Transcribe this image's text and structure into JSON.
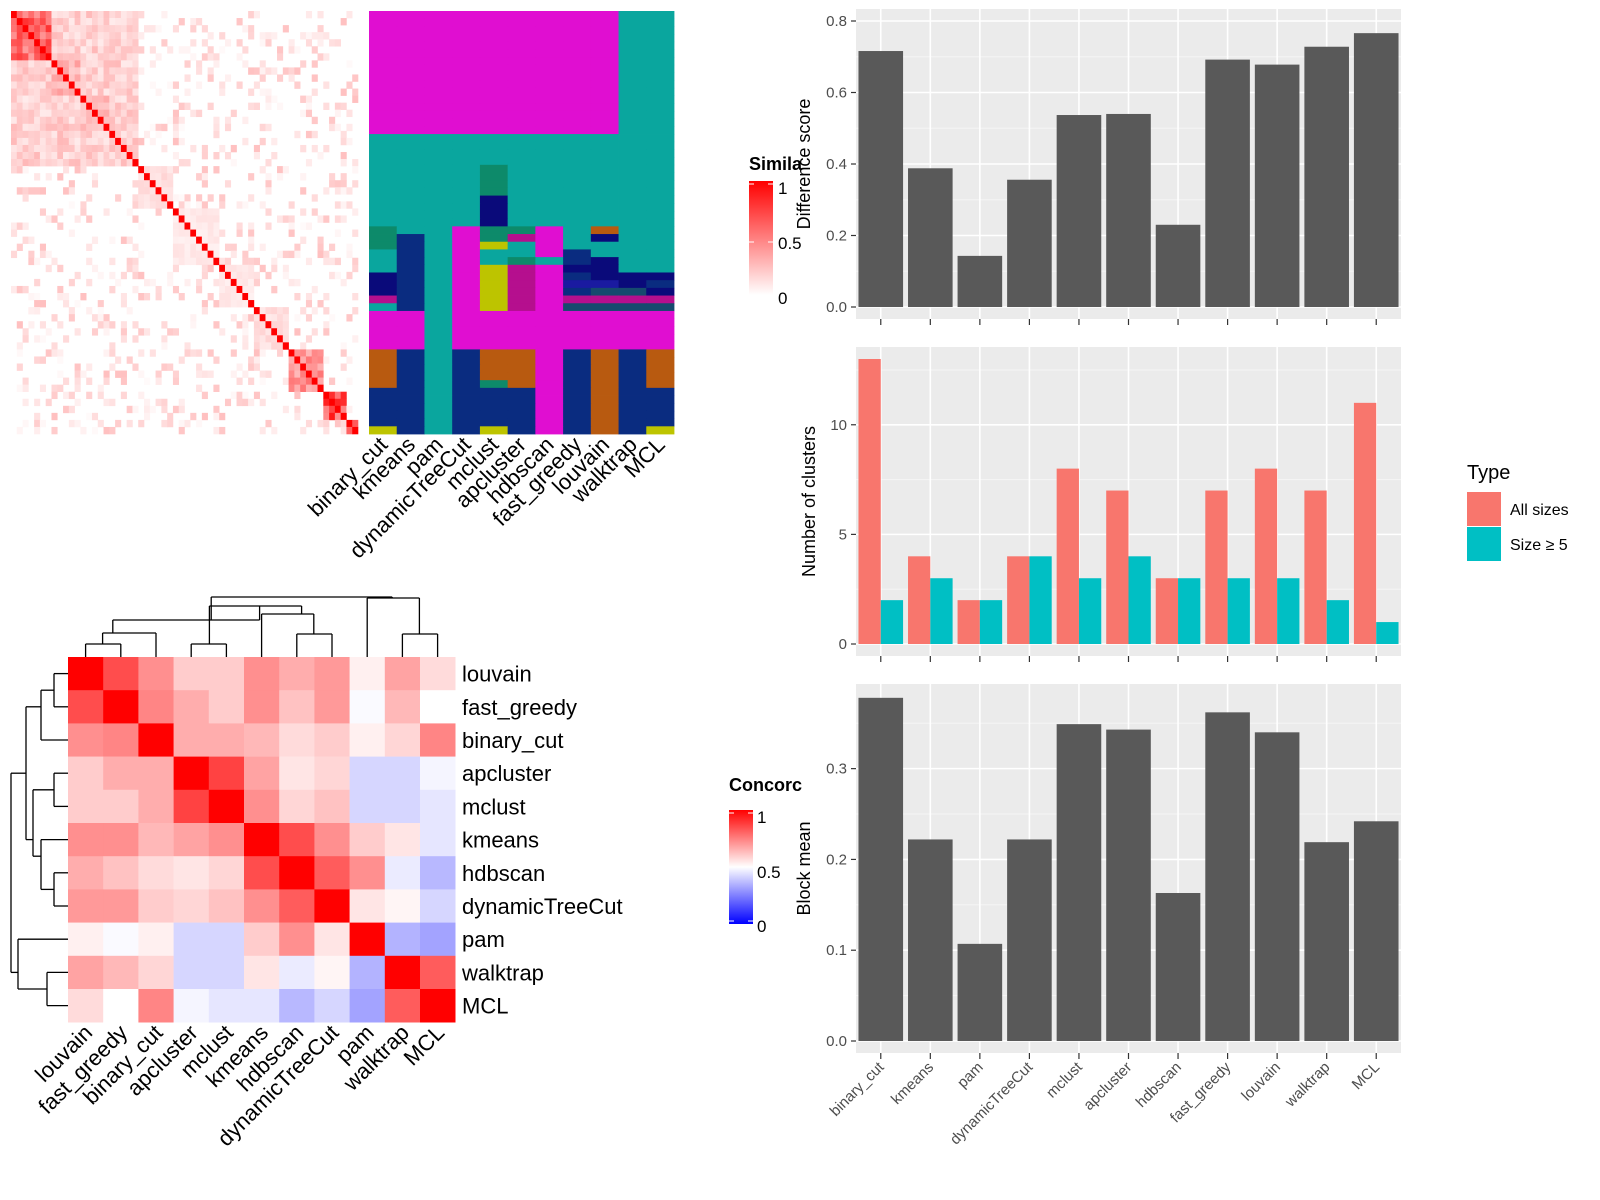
{
  "methods": [
    "binary_cut",
    "kmeans",
    "pam",
    "dynamicTreeCut",
    "mclust",
    "apcluster",
    "hdbscan",
    "fast_greedy",
    "louvain",
    "walktrap",
    "MCL"
  ],
  "similarity_legend": {
    "title": "Simila",
    "ticks": [
      "1",
      "0.5",
      "0"
    ],
    "colors": [
      "#ffffff",
      "#ff0000"
    ]
  },
  "concordance_legend": {
    "title": "Concorc",
    "ticks": [
      "1",
      "0.5",
      "0"
    ],
    "colors": [
      "#0000ff",
      "#ffffff",
      "#ff0000"
    ]
  },
  "colors": {
    "panel_bg": "#ebebeb",
    "bar_fill": "#595959",
    "all_sizes": "#f8766d",
    "size_ge5": "#00bfc4"
  },
  "chart_data": [
    {
      "type": "heatmap",
      "panel": "similarity",
      "title": "Simila",
      "n": 60,
      "blocks": [
        [
          0,
          7
        ],
        [
          7,
          12
        ],
        [
          12,
          17
        ],
        [
          17,
          22
        ],
        [
          22,
          28
        ],
        [
          28,
          36
        ],
        [
          36,
          42
        ],
        [
          42,
          48
        ],
        [
          48,
          54
        ],
        [
          54,
          58
        ],
        [
          58,
          60
        ]
      ],
      "block_strength": [
        0.7,
        0.35,
        0.3,
        0.15,
        0.15,
        0.1,
        0.1,
        0.15,
        0.5,
        0.8,
        0.9
      ],
      "range": [
        0,
        1
      ]
    },
    {
      "type": "heatmap",
      "panel": "cluster-assignments",
      "columns": [
        "binary_cut",
        "kmeans",
        "pam",
        "dynamicTreeCut",
        "mclust",
        "apcluster",
        "hdbscan",
        "fast_greedy",
        "louvain",
        "walktrap",
        "MCL"
      ],
      "palette": [
        "#e00ed1",
        "#0aa69e",
        "#0d8a6a",
        "#0a0a7a",
        "#0a2c80",
        "#bdc400",
        "#b50f8e",
        "#b85a10",
        "#1a1aa0",
        "#164a6e"
      ],
      "rows": [
        [
          0,
          0,
          0,
          0,
          0,
          0,
          0,
          0,
          0,
          1,
          1
        ],
        [
          0,
          0,
          0,
          0,
          0,
          0,
          0,
          0,
          0,
          1,
          1
        ],
        [
          0,
          0,
          0,
          0,
          0,
          0,
          0,
          0,
          0,
          1,
          1
        ],
        [
          0,
          0,
          0,
          0,
          0,
          0,
          0,
          0,
          0,
          1,
          1
        ],
        [
          0,
          0,
          0,
          0,
          0,
          0,
          0,
          0,
          0,
          1,
          1
        ],
        [
          0,
          0,
          0,
          0,
          0,
          0,
          0,
          0,
          0,
          1,
          1
        ],
        [
          0,
          0,
          0,
          0,
          0,
          0,
          0,
          0,
          0,
          1,
          1
        ],
        [
          0,
          0,
          0,
          0,
          0,
          0,
          0,
          0,
          0,
          1,
          1
        ],
        [
          0,
          0,
          0,
          0,
          0,
          0,
          0,
          0,
          0,
          1,
          1
        ],
        [
          0,
          0,
          0,
          0,
          0,
          0,
          0,
          0,
          0,
          1,
          1
        ],
        [
          0,
          0,
          0,
          0,
          0,
          0,
          0,
          0,
          0,
          1,
          1
        ],
        [
          0,
          0,
          0,
          0,
          0,
          0,
          0,
          0,
          0,
          1,
          1
        ],
        [
          0,
          0,
          0,
          0,
          0,
          0,
          0,
          0,
          0,
          1,
          1
        ],
        [
          0,
          0,
          0,
          0,
          0,
          0,
          0,
          0,
          0,
          1,
          1
        ],
        [
          0,
          0,
          0,
          0,
          0,
          0,
          0,
          0,
          0,
          1,
          1
        ],
        [
          0,
          0,
          0,
          0,
          0,
          0,
          0,
          0,
          0,
          1,
          1
        ],
        [
          1,
          1,
          1,
          1,
          1,
          1,
          1,
          1,
          1,
          1,
          1
        ],
        [
          1,
          1,
          1,
          1,
          1,
          1,
          1,
          1,
          1,
          1,
          1
        ],
        [
          1,
          1,
          1,
          1,
          1,
          1,
          1,
          1,
          1,
          1,
          1
        ],
        [
          1,
          1,
          1,
          1,
          1,
          1,
          1,
          1,
          1,
          1,
          1
        ],
        [
          1,
          1,
          1,
          1,
          2,
          1,
          1,
          1,
          1,
          1,
          1
        ],
        [
          1,
          1,
          1,
          1,
          2,
          1,
          1,
          1,
          1,
          1,
          1
        ],
        [
          1,
          1,
          1,
          1,
          2,
          1,
          1,
          1,
          1,
          1,
          1
        ],
        [
          1,
          1,
          1,
          1,
          2,
          1,
          1,
          1,
          1,
          1,
          1
        ],
        [
          1,
          1,
          1,
          1,
          3,
          1,
          1,
          1,
          1,
          1,
          1
        ],
        [
          1,
          1,
          1,
          1,
          3,
          1,
          1,
          1,
          1,
          1,
          1
        ],
        [
          1,
          1,
          1,
          1,
          3,
          1,
          1,
          1,
          1,
          1,
          1
        ],
        [
          1,
          1,
          1,
          1,
          3,
          1,
          1,
          1,
          1,
          1,
          1
        ],
        [
          2,
          1,
          1,
          0,
          2,
          2,
          0,
          1,
          7,
          1,
          1
        ],
        [
          2,
          4,
          1,
          0,
          2,
          6,
          0,
          1,
          3,
          1,
          1
        ],
        [
          2,
          4,
          1,
          0,
          5,
          1,
          0,
          1,
          1,
          1,
          1
        ],
        [
          1,
          4,
          1,
          0,
          1,
          1,
          0,
          4,
          1,
          1,
          1
        ],
        [
          1,
          4,
          1,
          0,
          1,
          2,
          1,
          4,
          3,
          1,
          1
        ],
        [
          1,
          4,
          1,
          0,
          5,
          6,
          0,
          3,
          3,
          1,
          1
        ],
        [
          3,
          4,
          1,
          0,
          5,
          6,
          0,
          4,
          3,
          3,
          3
        ],
        [
          3,
          4,
          1,
          0,
          5,
          6,
          0,
          8,
          8,
          3,
          4
        ],
        [
          3,
          4,
          1,
          0,
          5,
          6,
          0,
          4,
          9,
          9,
          3
        ],
        [
          6,
          4,
          1,
          0,
          5,
          6,
          0,
          6,
          6,
          6,
          6
        ],
        [
          1,
          4,
          1,
          0,
          5,
          6,
          0,
          9,
          9,
          9,
          9
        ],
        [
          0,
          0,
          1,
          0,
          0,
          0,
          0,
          0,
          0,
          0,
          0
        ],
        [
          0,
          0,
          1,
          0,
          0,
          0,
          0,
          0,
          0,
          0,
          0
        ],
        [
          0,
          0,
          1,
          0,
          0,
          0,
          0,
          0,
          0,
          0,
          0
        ],
        [
          0,
          0,
          1,
          0,
          0,
          0,
          0,
          0,
          0,
          0,
          0
        ],
        [
          0,
          0,
          1,
          0,
          0,
          0,
          0,
          0,
          0,
          0,
          0
        ],
        [
          7,
          4,
          1,
          4,
          7,
          7,
          0,
          4,
          7,
          4,
          7
        ],
        [
          7,
          4,
          1,
          4,
          7,
          7,
          0,
          4,
          7,
          4,
          7
        ],
        [
          7,
          4,
          1,
          4,
          7,
          7,
          0,
          4,
          7,
          4,
          7
        ],
        [
          7,
          4,
          1,
          4,
          7,
          7,
          0,
          4,
          7,
          4,
          7
        ],
        [
          7,
          4,
          1,
          4,
          2,
          7,
          0,
          4,
          7,
          4,
          7
        ],
        [
          4,
          4,
          1,
          4,
          4,
          4,
          0,
          4,
          7,
          4,
          4
        ],
        [
          4,
          4,
          1,
          4,
          4,
          4,
          0,
          4,
          7,
          4,
          4
        ],
        [
          4,
          4,
          1,
          4,
          4,
          4,
          0,
          4,
          7,
          4,
          4
        ],
        [
          4,
          4,
          1,
          4,
          4,
          4,
          0,
          4,
          7,
          4,
          4
        ],
        [
          4,
          4,
          1,
          4,
          4,
          4,
          0,
          4,
          7,
          4,
          4
        ],
        [
          5,
          4,
          1,
          4,
          5,
          4,
          0,
          4,
          7,
          4,
          5
        ]
      ]
    },
    {
      "type": "heatmap",
      "panel": "concordance",
      "title": "Concorc",
      "order": [
        "louvain",
        "fast_greedy",
        "binary_cut",
        "apcluster",
        "mclust",
        "kmeans",
        "hdbscan",
        "dynamicTreeCut",
        "pam",
        "walktrap",
        "MCL"
      ],
      "range": [
        0,
        1
      ],
      "matrix": [
        [
          1.0,
          0.85,
          0.72,
          0.6,
          0.6,
          0.72,
          0.66,
          0.7,
          0.53,
          0.68,
          0.57
        ],
        [
          0.85,
          1.0,
          0.74,
          0.66,
          0.6,
          0.72,
          0.62,
          0.7,
          0.49,
          0.64,
          0.5
        ],
        [
          0.72,
          0.74,
          1.0,
          0.66,
          0.66,
          0.64,
          0.57,
          0.6,
          0.53,
          0.58,
          0.74
        ],
        [
          0.6,
          0.66,
          0.66,
          1.0,
          0.87,
          0.68,
          0.55,
          0.58,
          0.42,
          0.42,
          0.48
        ],
        [
          0.6,
          0.6,
          0.66,
          0.87,
          1.0,
          0.72,
          0.58,
          0.62,
          0.42,
          0.42,
          0.45
        ],
        [
          0.72,
          0.72,
          0.64,
          0.68,
          0.72,
          1.0,
          0.85,
          0.72,
          0.6,
          0.55,
          0.45
        ],
        [
          0.66,
          0.62,
          0.57,
          0.55,
          0.58,
          0.85,
          1.0,
          0.82,
          0.72,
          0.46,
          0.36
        ],
        [
          0.7,
          0.7,
          0.6,
          0.58,
          0.62,
          0.72,
          0.82,
          1.0,
          0.55,
          0.52,
          0.42
        ],
        [
          0.53,
          0.49,
          0.53,
          0.42,
          0.42,
          0.6,
          0.72,
          0.55,
          1.0,
          0.35,
          0.32
        ],
        [
          0.68,
          0.64,
          0.58,
          0.42,
          0.42,
          0.55,
          0.46,
          0.52,
          0.35,
          1.0,
          0.82
        ],
        [
          0.57,
          0.5,
          0.74,
          0.48,
          0.45,
          0.45,
          0.36,
          0.42,
          0.32,
          0.82,
          1.0
        ]
      ]
    },
    {
      "type": "bar",
      "panel": "difference-score",
      "categories": [
        "binary_cut",
        "kmeans",
        "pam",
        "dynamicTreeCut",
        "mclust",
        "apcluster",
        "hdbscan",
        "fast_greedy",
        "louvain",
        "walktrap",
        "MCL"
      ],
      "values": [
        0.716,
        0.388,
        0.143,
        0.356,
        0.537,
        0.54,
        0.23,
        0.692,
        0.678,
        0.728,
        0.766
      ],
      "xlabel": "",
      "ylabel": "Difference score",
      "ylim": [
        0,
        0.8
      ],
      "yticks": [
        "0.0",
        "0.2",
        "0.4",
        "0.6",
        "0.8"
      ],
      "grid": true
    },
    {
      "type": "bar",
      "panel": "number-of-clusters",
      "categories": [
        "binary_cut",
        "kmeans",
        "pam",
        "dynamicTreeCut",
        "mclust",
        "apcluster",
        "hdbscan",
        "fast_greedy",
        "louvain",
        "walktrap",
        "MCL"
      ],
      "series": [
        {
          "name": "All sizes",
          "values": [
            13,
            4,
            2,
            4,
            8,
            7,
            3,
            7,
            8,
            7,
            11
          ]
        },
        {
          "name": "Size ≥ 5",
          "values": [
            2,
            3,
            2,
            4,
            3,
            4,
            3,
            3,
            3,
            2,
            1
          ]
        }
      ],
      "xlabel": "",
      "ylabel": "Number of clusters",
      "ylim": [
        0,
        13
      ],
      "yticks": [
        "0",
        "5",
        "10"
      ],
      "legend": {
        "title": "Type",
        "placement": "right"
      },
      "grid": true
    },
    {
      "type": "bar",
      "panel": "block-mean",
      "categories": [
        "binary_cut",
        "kmeans",
        "pam",
        "dynamicTreeCut",
        "mclust",
        "apcluster",
        "hdbscan",
        "fast_greedy",
        "louvain",
        "walktrap",
        "MCL"
      ],
      "values": [
        0.378,
        0.222,
        0.107,
        0.222,
        0.349,
        0.343,
        0.163,
        0.362,
        0.34,
        0.219,
        0.242
      ],
      "xlabel": "",
      "ylabel": "Block mean",
      "ylim": [
        0,
        0.38
      ],
      "yticks": [
        "0.0",
        "0.1",
        "0.2",
        "0.3"
      ],
      "grid": true
    }
  ]
}
